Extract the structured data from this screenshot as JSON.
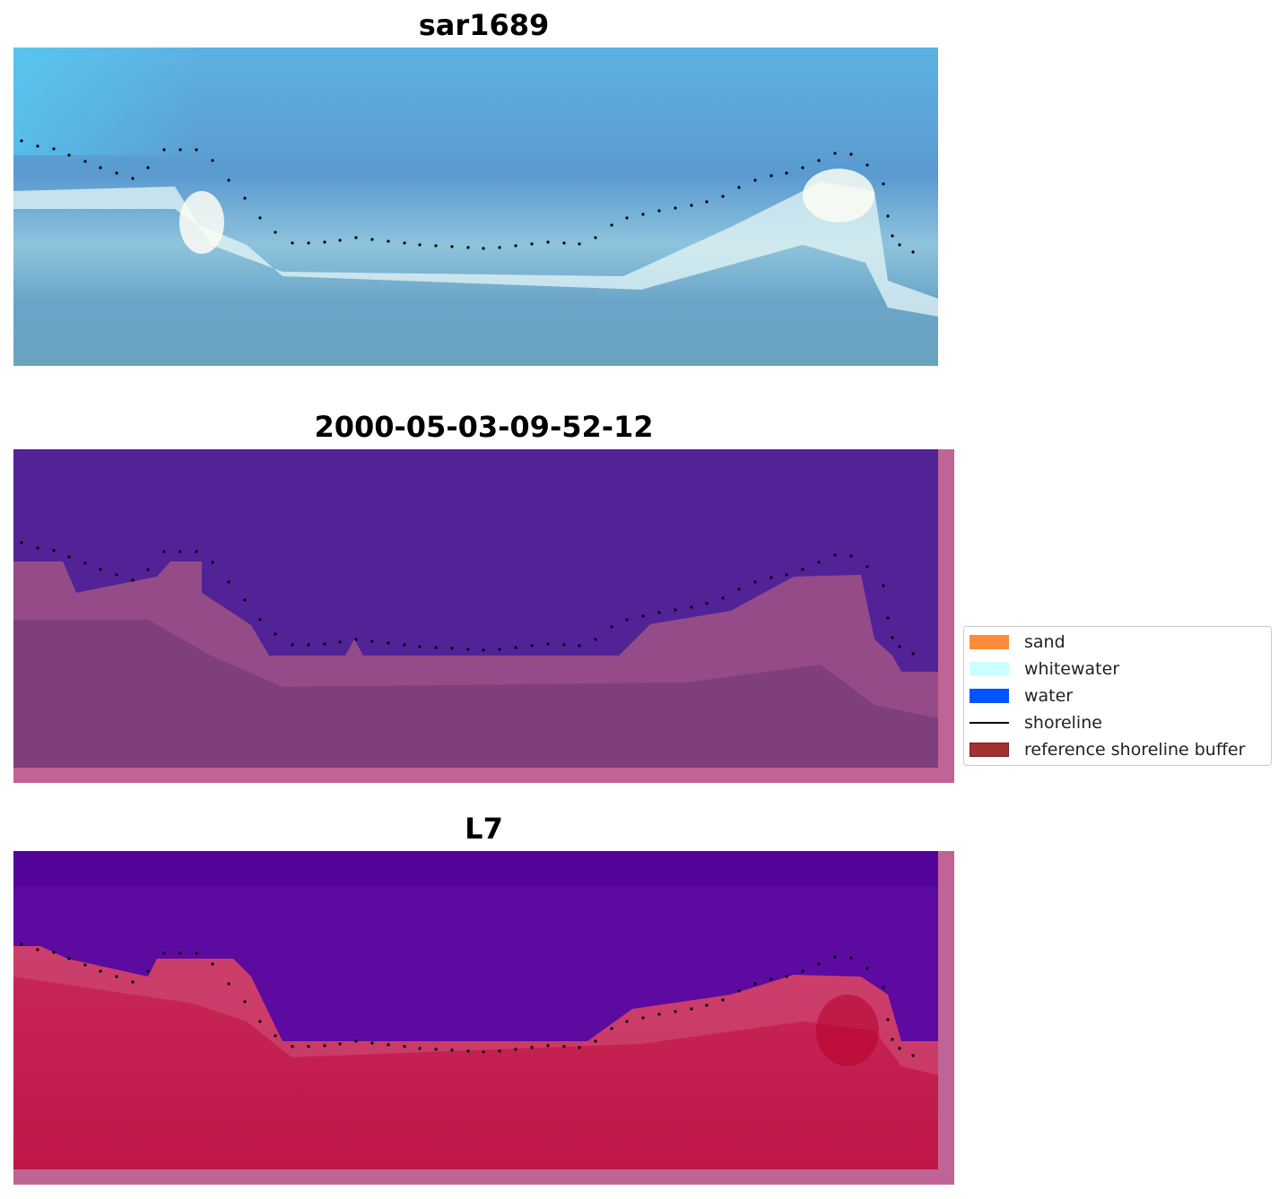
{
  "panels": [
    {
      "title": "sar1689"
    },
    {
      "title": "2000-05-03-09-52-12"
    },
    {
      "title": "L7"
    }
  ],
  "legend": {
    "items": [
      {
        "label": "sand",
        "color": "#ff8c3a",
        "kind": "patch"
      },
      {
        "label": "whitewater",
        "color": "#ccffff",
        "kind": "patch"
      },
      {
        "label": "water",
        "color": "#0055ff",
        "kind": "patch"
      },
      {
        "label": "shoreline",
        "color": "#000000",
        "kind": "line"
      },
      {
        "label": "reference shoreline buffer",
        "color": "#a23131",
        "kind": "patch"
      }
    ]
  },
  "colors": {
    "buffer_overlay": "#c06496",
    "class_water": "#522397",
    "class_land": "#7e3f7c",
    "l7_water": "#5c0aa0",
    "l7_land": "#c42654"
  }
}
